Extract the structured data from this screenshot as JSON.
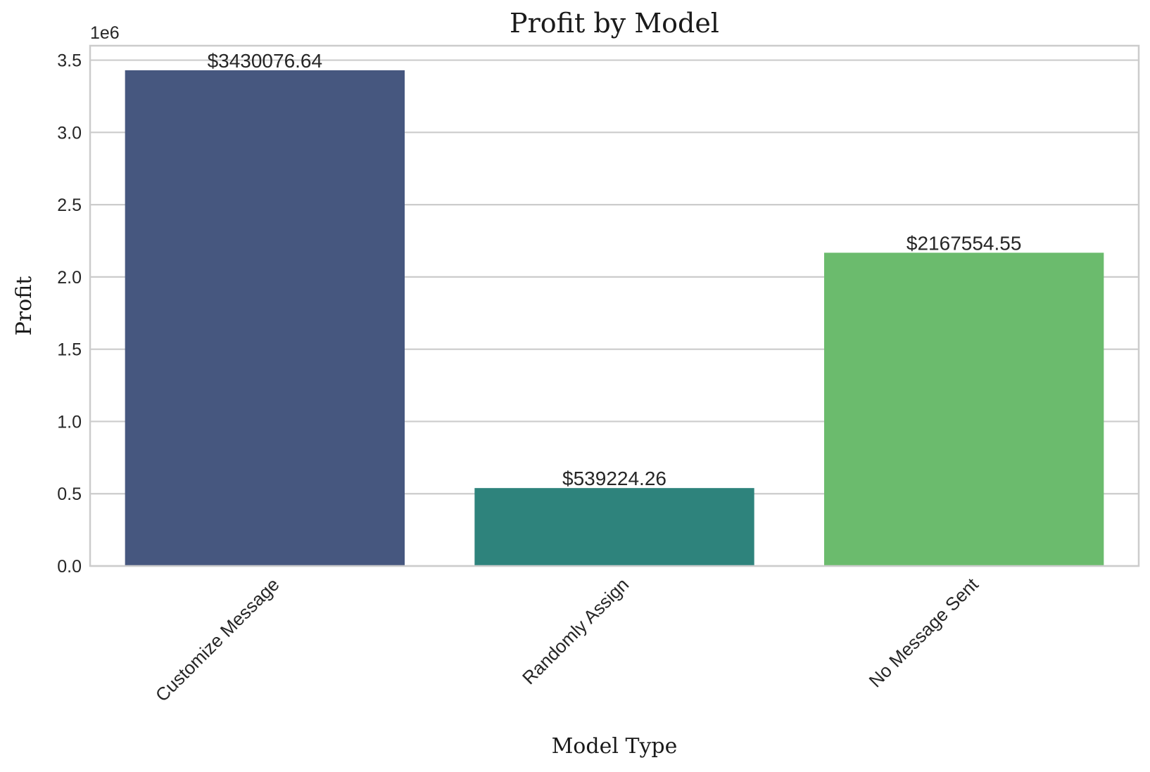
{
  "chart_data": {
    "type": "bar",
    "title": "Profit by Model",
    "xlabel": "Model Type",
    "ylabel": "Profit",
    "y_offset_label": "1e6",
    "categories": [
      "Customize Message",
      "Randomly Assign",
      "No Message Sent"
    ],
    "values": [
      3430076.64,
      539224.26,
      2167554.55
    ],
    "data_labels": [
      "$3430076.64",
      "$539224.26",
      "$2167554.55"
    ],
    "colors": [
      "#46577f",
      "#2e837c",
      "#6bbb6d"
    ],
    "ylim": [
      0,
      3.6
    ],
    "yticks": [
      0.0,
      0.5,
      1.0,
      1.5,
      2.0,
      2.5,
      3.0,
      3.5
    ],
    "ytick_labels": [
      "0.0",
      "0.5",
      "1.0",
      "1.5",
      "2.0",
      "2.5",
      "3.0",
      "3.5"
    ],
    "y_scale_factor": 1000000,
    "grid": "horizontal",
    "xtick_rotation": 45
  }
}
